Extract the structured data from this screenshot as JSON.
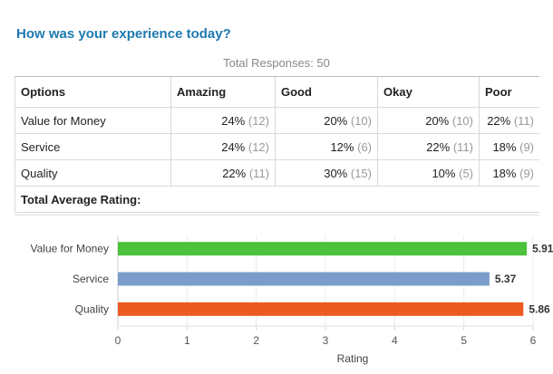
{
  "survey": {
    "question": "How was your experience today?",
    "total_responses": "Total Responses: 50"
  },
  "table": {
    "headers": [
      "Options",
      "Amazing",
      "Good",
      "Okay",
      "Poor"
    ],
    "rows": [
      {
        "option": "Value for Money",
        "cells": [
          {
            "pct": "24%",
            "count": "(12)"
          },
          {
            "pct": "20%",
            "count": "(10)"
          },
          {
            "pct": "20%",
            "count": "(10)"
          },
          {
            "pct": "22%",
            "count": "(11)"
          }
        ]
      },
      {
        "option": "Service",
        "cells": [
          {
            "pct": "24%",
            "count": "(12)"
          },
          {
            "pct": "12%",
            "count": "(6)"
          },
          {
            "pct": "22%",
            "count": "(11)"
          },
          {
            "pct": "18%",
            "count": "(9)"
          }
        ]
      },
      {
        "option": "Quality",
        "cells": [
          {
            "pct": "22%",
            "count": "(11)"
          },
          {
            "pct": "30%",
            "count": "(15)"
          },
          {
            "pct": "10%",
            "count": "(5)"
          },
          {
            "pct": "18%",
            "count": "(9)"
          }
        ]
      }
    ],
    "total_average_label": "Total Average Rating:"
  },
  "chart_data": {
    "type": "bar",
    "orientation": "horizontal",
    "categories": [
      "Value for Money",
      "Service",
      "Quality"
    ],
    "values": [
      5.91,
      5.37,
      5.86
    ],
    "value_labels": [
      "5.91",
      "5.37",
      "5.86"
    ],
    "colors": [
      "#4cc23c",
      "#7a9ec9",
      "#ec5a22"
    ],
    "xlabel": "Rating",
    "xlim": [
      0,
      6
    ],
    "ticks": [
      "0",
      "1",
      "2",
      "3",
      "4",
      "5",
      "6"
    ],
    "grid": true
  }
}
